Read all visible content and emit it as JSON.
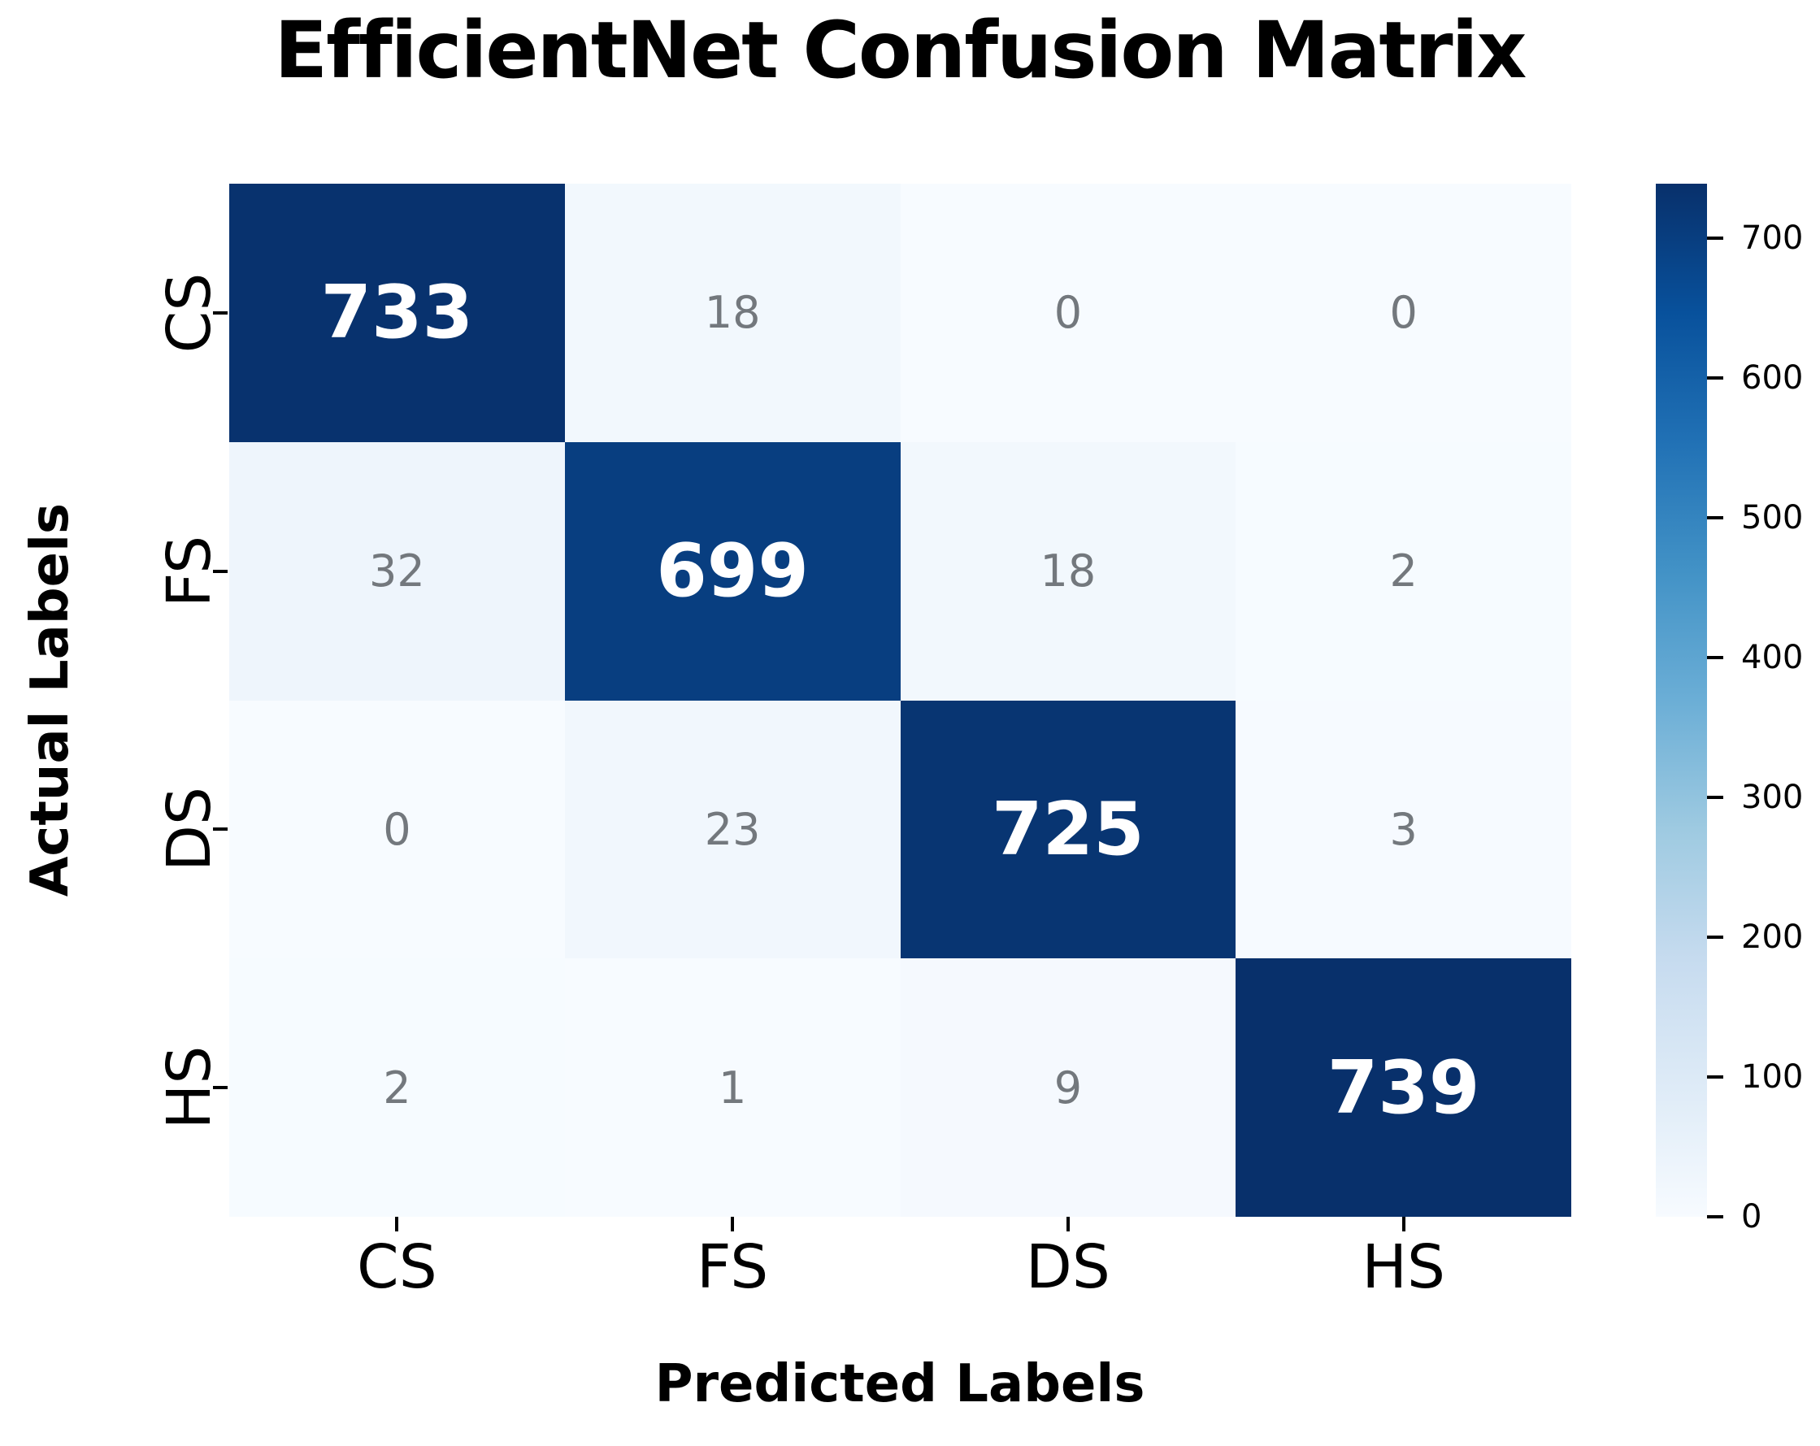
{
  "chart_data": {
    "type": "heatmap",
    "title": "EfficientNet Confusion Matrix",
    "xlabel": "Predicted Labels",
    "ylabel": "Actual Labels",
    "x_categories": [
      "CS",
      "FS",
      "DS",
      "HS"
    ],
    "y_categories": [
      "CS",
      "FS",
      "DS",
      "HS"
    ],
    "matrix": [
      [
        733,
        18,
        0,
        0
      ],
      [
        32,
        699,
        18,
        2
      ],
      [
        0,
        23,
        725,
        3
      ],
      [
        2,
        1,
        9,
        739
      ]
    ],
    "vmin": 0,
    "vmax": 739,
    "colorbar_ticks": [
      0,
      100,
      200,
      300,
      400,
      500,
      600,
      700
    ],
    "legend_position": "right",
    "grid": false,
    "colormap": {
      "name": "Blues",
      "stops": [
        "#f7fbff",
        "#deebf7",
        "#c6dbef",
        "#9ecae1",
        "#6baed6",
        "#4292c6",
        "#2171b5",
        "#08519c",
        "#08306b"
      ]
    },
    "annotation_colors": {
      "high_value_text": "#ffffff",
      "low_value_text": "#73787d"
    }
  }
}
